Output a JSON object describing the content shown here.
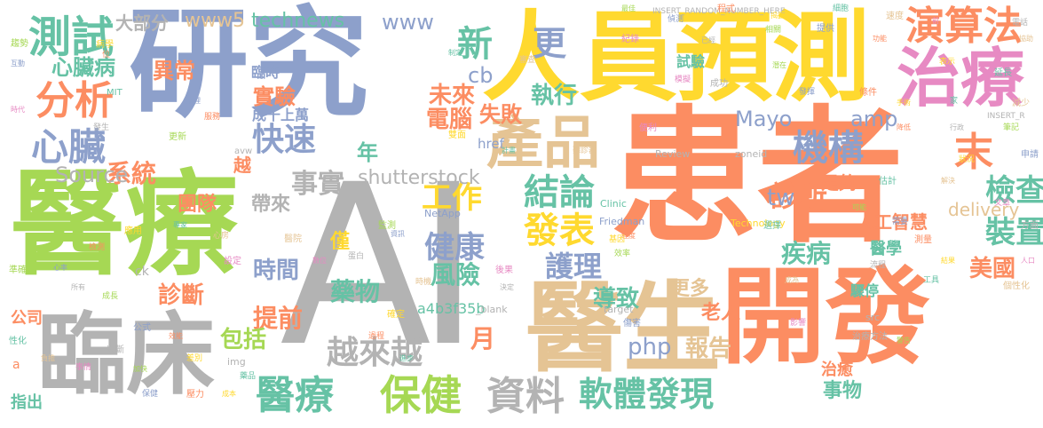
{
  "palette": {
    "green": "#a6d854",
    "blue": "#8da0cb",
    "orange": "#fc8d62",
    "yellow": "#ffd92f",
    "teal": "#66c2a5",
    "tan": "#e5c494",
    "pink": "#e78ac3",
    "grey": "#b3b3b3",
    "background": "#ffffff"
  },
  "words": {
    "ai": "AI",
    "patient": "患者",
    "develop": "開發",
    "medical_care": "醫療",
    "research": "研究",
    "personnel": "人員",
    "predict": "預測",
    "clinical": "臨床",
    "doctor": "醫生",
    "treatment": "治療",
    "product": "產品",
    "algorithm": "演算法",
    "test": "測試",
    "analysis": "分析",
    "heart": "心臟",
    "heart_disease": "心臟病",
    "data": "資料",
    "software": "軟體",
    "discover": "發現",
    "healthcare": "保健",
    "medical_care_2": "醫療",
    "device": "裝置",
    "check": "檢查",
    "publish": "發表",
    "conclusion": "結論",
    "health": "健康",
    "nursing": "護理",
    "risk": "風險",
    "drug": "藥物",
    "more_and_more": "越來越",
    "new": "新",
    "more": "更",
    "end": "末",
    "system": "系統",
    "clinic": "診所",
    "institution": "機構",
    "fast": "快速",
    "work": "工作",
    "fact": "事實",
    "time": "時間",
    "early": "提前",
    "diagnosis": "診斷",
    "disease": "疾病",
    "ai_ai": "人工智慧",
    "usa": "美國",
    "report": "報告",
    "include": "包括",
    "lead_to": "導致",
    "experiment": "實驗",
    "abnormal": "異常",
    "execute": "執行",
    "failure": "失敗",
    "computer": "電腦",
    "future": "未來",
    "more_many": "更多",
    "elderly": "老人",
    "things": "事物",
    "month": "月",
    "year": "年",
    "team": "團隊",
    "bring": "帶來",
    "thousands": "成千上萬",
    "majority": "大部分",
    "company": "公司",
    "point_out": "指出",
    "sufficient": "足夠",
    "medicine": "醫學",
    "cure": "治癒",
    "arrest": "驟停",
    "only": "僅",
    "cross": "越",
    "temporary": "臨時",
    "trial": "試驗",
    "www": "www",
    "www5": "www5",
    "technews": "technews",
    "shutterstock": "shutterstock",
    "source": "Source",
    "mayo": "Mayo",
    "amp": "amp",
    "delivery": "delivery",
    "php": "php",
    "tw": "tw",
    "cb": "cb",
    "hash": "a4b3f35b",
    "href": "href",
    "ck": "ck",
    "a": "a",
    "netapp": "NetApp",
    "friedman": "Friedman",
    "review": "Review",
    "zoneid": "zoneid",
    "clinic_en": "Clinic",
    "technology": "Technology",
    "img": "img",
    "target": "target",
    "src": "src",
    "blank": "_blank",
    "mit": "MIT",
    "avw": "avw",
    "insert_random": "INSERT_RANDOM_NUMBER_HERE",
    "insert_r": "INSERT_R",
    "small": [
      "最佳",
      "偵測",
      "程式",
      "揭露",
      "細胞",
      "速度",
      "前",
      "電話",
      "趨勢",
      "互動",
      "位",
      "病學",
      "制定",
      "審查",
      "紀錄",
      "已經",
      "相關",
      "提供",
      "功能",
      "表示",
      "延長",
      "協助",
      "模擬",
      "成功",
      "潛在",
      "發揮",
      "條件",
      "手術",
      "家",
      "減少",
      "時代",
      "發生",
      "更新",
      "病理",
      "服務",
      "雙面",
      "計畫",
      "聽診器",
      "便利",
      "行政",
      "筆記",
      "申請",
      "降低",
      "狀況",
      "估計",
      "解決",
      "文章",
      "方面",
      "可能",
      "需要",
      "測量",
      "結果",
      "工具",
      "個性化",
      "人口",
      "流程",
      "準確",
      "心率",
      "檢測",
      "應用",
      "專家",
      "心房",
      "設定",
      "所有",
      "成長",
      "公式",
      "效能",
      "差別",
      "性化",
      "負擔",
      "事情",
      "判斷",
      "加快",
      "保健",
      "壓力",
      "成本",
      "藥品",
      "醫院",
      "數位",
      "蛋白",
      "監測",
      "資訊",
      "過程",
      "確定",
      "進步",
      "時機",
      "後果",
      "決定",
      "效率",
      "傷害",
      "程度",
      "基因",
      "選擇",
      "成為",
      "影響",
      "治療方法",
      "警告"
    ]
  }
}
